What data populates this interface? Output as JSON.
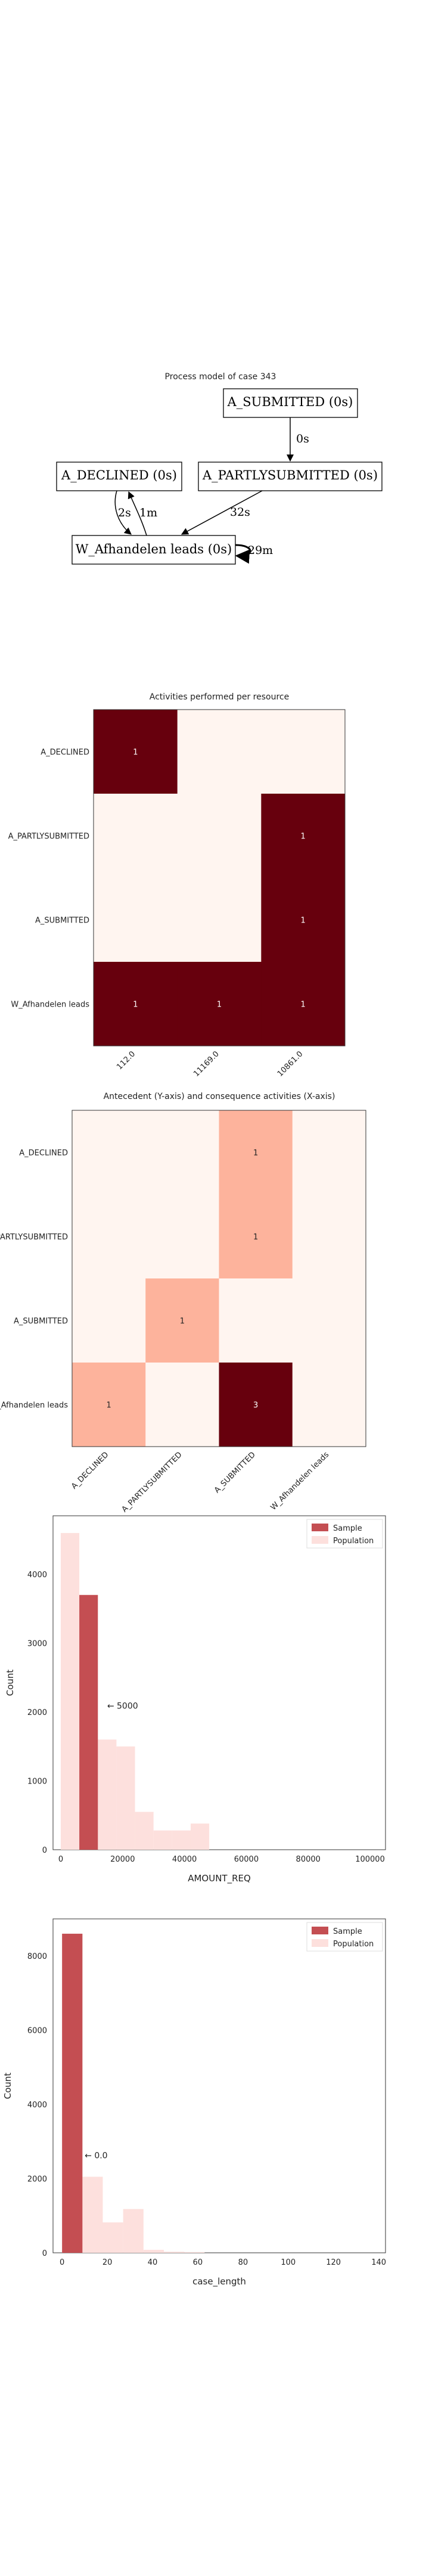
{
  "process_model": {
    "title": "Process model of case 343",
    "nodes": [
      {
        "id": "sub",
        "label": "A_SUBMITTED (0s)"
      },
      {
        "id": "dec",
        "label": "A_DECLINED (0s)"
      },
      {
        "id": "part",
        "label": "A_PARTLYSUBMITTED (0s)"
      },
      {
        "id": "w",
        "label": "W_Afhandelen leads (0s)"
      }
    ],
    "edges": [
      {
        "from": "sub",
        "to": "part",
        "label": "0s"
      },
      {
        "from": "part",
        "to": "w",
        "label": "32s"
      },
      {
        "from": "dec",
        "to": "w",
        "label": "2s"
      },
      {
        "from": "w",
        "to": "dec",
        "label": "1m"
      },
      {
        "from": "w",
        "to": "w",
        "label": "29m"
      }
    ]
  },
  "chart_data": [
    {
      "type": "heatmap",
      "title": "Activities performed per resource",
      "rows": [
        "A_DECLINED",
        "A_PARTLYSUBMITTED",
        "A_SUBMITTED",
        "W_Afhandelen leads"
      ],
      "columns": [
        "112.0",
        "11169.0",
        "10861.0"
      ],
      "values": [
        [
          1,
          0,
          0
        ],
        [
          0,
          0,
          1
        ],
        [
          0,
          0,
          1
        ],
        [
          1,
          1,
          1
        ]
      ],
      "vmax": 1
    },
    {
      "type": "heatmap",
      "title": "Antecedent (Y-axis) and consequence activities (X-axis)",
      "rows": [
        "A_DECLINED",
        "A_PARTLYSUBMITTED",
        "A_SUBMITTED",
        "W_Afhandelen leads"
      ],
      "columns": [
        "A_DECLINED",
        "A_PARTLYSUBMITTED",
        "A_SUBMITTED",
        "W_Afhandelen leads"
      ],
      "values": [
        [
          0,
          0,
          1,
          0
        ],
        [
          0,
          0,
          1,
          0
        ],
        [
          0,
          1,
          0,
          0
        ],
        [
          1,
          0,
          3,
          0
        ]
      ],
      "vmax": 3
    },
    {
      "type": "bar",
      "xlabel": "AMOUNT_REQ",
      "ylabel": "Count",
      "xlim": [
        -2500,
        105000
      ],
      "ylim": [
        0,
        4850
      ],
      "xticks": [
        0,
        20000,
        40000,
        60000,
        80000,
        100000
      ],
      "yticks": [
        0,
        1000,
        2000,
        3000,
        4000
      ],
      "bin_width": 6000,
      "population": {
        "name": "Population",
        "bins": [
          0,
          6000,
          12000,
          18000,
          24000,
          30000,
          36000,
          42000,
          48000,
          54000,
          60000,
          66000
        ],
        "values": [
          4600,
          3700,
          1600,
          1500,
          550,
          280,
          280,
          380,
          0,
          0,
          0,
          0
        ]
      },
      "sample": {
        "name": "Sample",
        "bins": [
          6000
        ],
        "values": [
          3700
        ]
      },
      "annotation": "← 5000",
      "annotation_at": [
        15000,
        2050
      ],
      "legend": "top-right"
    },
    {
      "type": "bar",
      "xlabel": "case_length",
      "ylabel": "Count",
      "xlim": [
        -4,
        143
      ],
      "ylim": [
        0,
        9000
      ],
      "xticks": [
        0,
        20,
        40,
        60,
        80,
        100,
        120,
        140
      ],
      "yticks": [
        0,
        2000,
        4000,
        6000,
        8000
      ],
      "bin_width": 9,
      "population": {
        "name": "Population",
        "bins": [
          0,
          9,
          18,
          27,
          36,
          45,
          54
        ],
        "values": [
          8600,
          2050,
          820,
          1180,
          80,
          30,
          20
        ]
      },
      "sample": {
        "name": "Sample",
        "bins": [
          0
        ],
        "values": [
          8600
        ]
      },
      "annotation": "← 0.0",
      "annotation_at": [
        10,
        2550
      ],
      "legend": "top-right"
    }
  ],
  "colors": {
    "heat_low": "#fff5f0",
    "heat_mid": "#fc9272",
    "heat_high": "#67000d",
    "sample": "#c44e52",
    "population": "#fde0dd"
  }
}
